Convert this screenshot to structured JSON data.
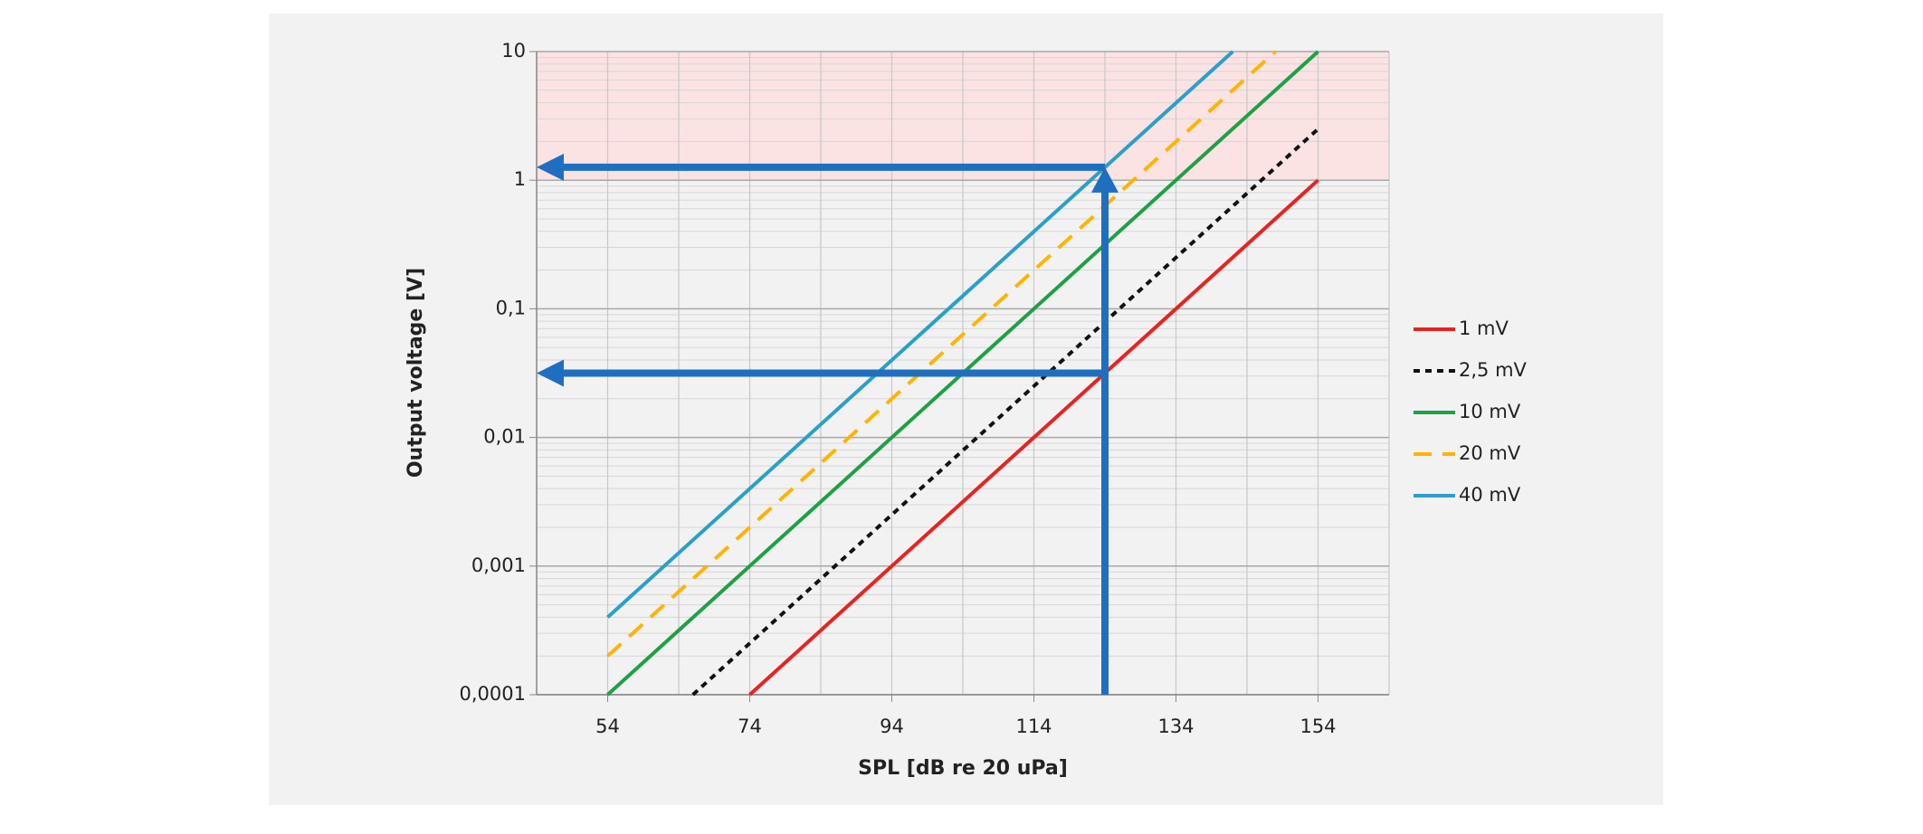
{
  "chart_data": {
    "type": "line",
    "x_label": "SPL [dB re 20 uPa]",
    "y_label": "Output voltage [V]",
    "xlim": [
      44,
      164
    ],
    "xticks": [
      54,
      74,
      94,
      114,
      134,
      154
    ],
    "xgrid_step": 10,
    "ylim": [
      0.0001,
      10
    ],
    "yticks": [
      {
        "value": 0.0001,
        "label": "0,0001"
      },
      {
        "value": 0.001,
        "label": "0,001"
      },
      {
        "value": 0.01,
        "label": "0,01"
      },
      {
        "value": 0.1,
        "label": "0,1"
      },
      1,
      10
    ],
    "y_log": true,
    "grid": true,
    "minor_grid": true,
    "legend": "right",
    "shaded_range": {
      "y": [
        1,
        10
      ],
      "color": "#fbe3e3"
    },
    "markers": {
      "x": 124,
      "levels": [
        1.26,
        0.0316
      ],
      "color": "#1f6fc0"
    },
    "series": [
      {
        "name": "1 mV",
        "color": "#e8231f",
        "dash": "solid",
        "x": [
          74,
          154
        ],
        "values": [
          0.0001,
          1
        ]
      },
      {
        "name": "2,5 mV",
        "color": "#111111",
        "dash": "dotted",
        "x": [
          66,
          154
        ],
        "values": [
          0.0001,
          2.5
        ]
      },
      {
        "name": "10 mV",
        "color": "#1fa045",
        "dash": "solid",
        "x": [
          54,
          154
        ],
        "values": [
          0.0001,
          10
        ]
      },
      {
        "name": "20 mV",
        "color": "#ffb400",
        "dash": "dashed",
        "x": [
          54,
          148
        ],
        "values": [
          0.0002,
          10
        ]
      },
      {
        "name": "40 mV",
        "color": "#2aa0c8",
        "dash": "solid",
        "x": [
          54,
          142
        ],
        "values": [
          0.0004,
          10
        ]
      }
    ]
  }
}
